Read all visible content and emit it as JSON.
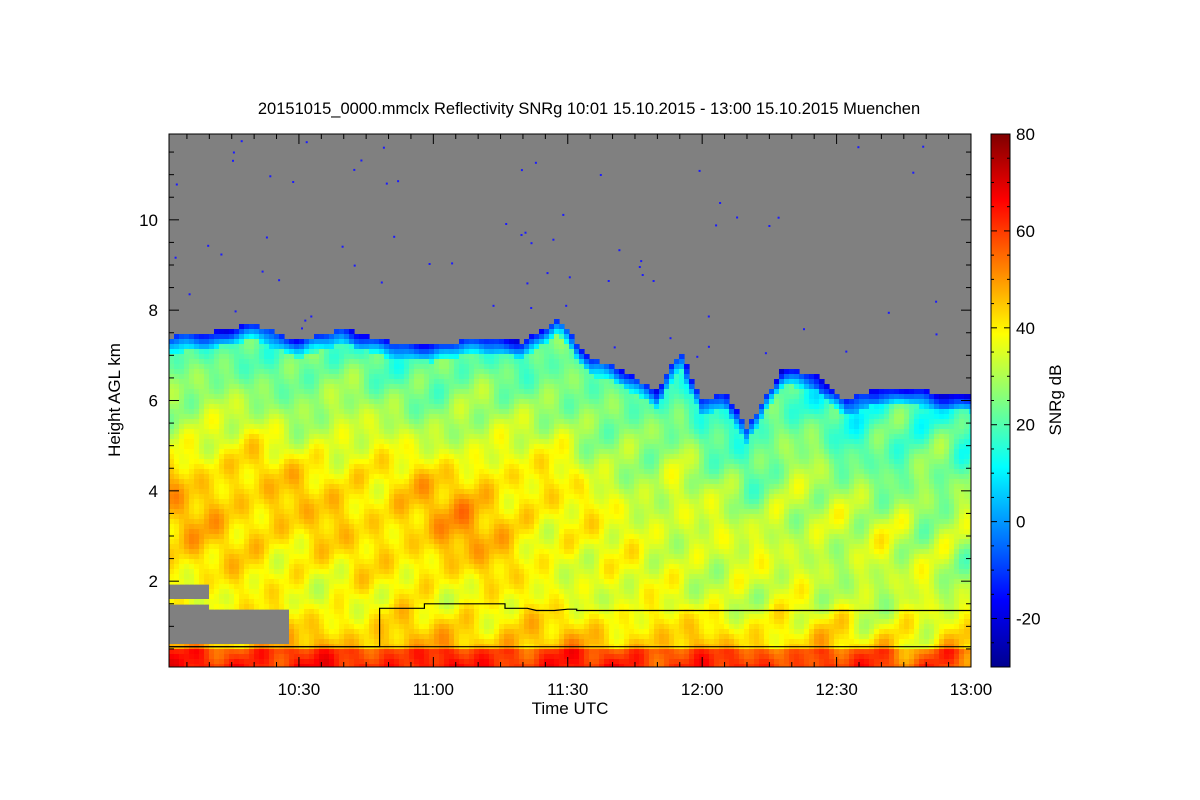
{
  "chart_data": {
    "type": "heatmap",
    "title": "20151015_0000.mmclx Reflectivity SNRg   10:01 15.10.2015 - 13:00 15.10.2015 Muenchen",
    "xlabel": "Time UTC",
    "ylabel": "Height AGL km",
    "x_ticks": [
      "10:30",
      "11:00",
      "11:30",
      "12:00",
      "12:30",
      "13:00"
    ],
    "x_tick_minutes": [
      630,
      660,
      690,
      720,
      750,
      780
    ],
    "xlim_minutes": [
      601,
      780
    ],
    "y_ticks": [
      "2",
      "4",
      "6",
      "8",
      "10"
    ],
    "y_tick_values": [
      2,
      4,
      6,
      8,
      10
    ],
    "ylim": [
      0.1,
      11.9
    ],
    "colorbar": {
      "label": "SNRg dB",
      "ticks": [
        "-20",
        "0",
        "20",
        "40",
        "60",
        "80"
      ],
      "tick_values": [
        -20,
        0,
        20,
        40,
        60,
        80
      ],
      "range": [
        -30,
        80
      ],
      "colors": [
        "#00008f",
        "#0000ff",
        "#0080ff",
        "#00ffff",
        "#80ff80",
        "#ffff00",
        "#ff8000",
        "#ff0000",
        "#800000"
      ]
    },
    "no_signal_color": "#808080",
    "cloud_top_km": [
      [
        601,
        7.4
      ],
      [
        610,
        7.5
      ],
      [
        620,
        7.7
      ],
      [
        630,
        7.3
      ],
      [
        640,
        7.6
      ],
      [
        650,
        7.3
      ],
      [
        660,
        7.2
      ],
      [
        670,
        7.4
      ],
      [
        680,
        7.3
      ],
      [
        688,
        7.8
      ],
      [
        695,
        6.9
      ],
      [
        700,
        6.8
      ],
      [
        710,
        6.2
      ],
      [
        715,
        7.1
      ],
      [
        720,
        6.0
      ],
      [
        725,
        6.2
      ],
      [
        730,
        5.4
      ],
      [
        738,
        6.7
      ],
      [
        745,
        6.6
      ],
      [
        752,
        6.0
      ],
      [
        760,
        6.3
      ],
      [
        770,
        6.2
      ],
      [
        780,
        6.1
      ]
    ],
    "series": [
      {
        "name": "",
        "points": [
          [
            601,
            0.55
          ],
          [
            648,
            0.55
          ],
          [
            648,
            1.4
          ],
          [
            658,
            1.4
          ],
          [
            658,
            1.5
          ],
          [
            676,
            1.5
          ],
          [
            676,
            1.4
          ],
          [
            681,
            1.4
          ],
          [
            683,
            1.35
          ],
          [
            687,
            1.35
          ],
          [
            690,
            1.38
          ],
          [
            692,
            1.38
          ],
          [
            692,
            1.35
          ],
          [
            780,
            1.35
          ]
        ]
      },
      {
        "name": "",
        "points": [
          [
            601,
            0.55
          ],
          [
            780,
            0.55
          ]
        ]
      }
    ]
  }
}
